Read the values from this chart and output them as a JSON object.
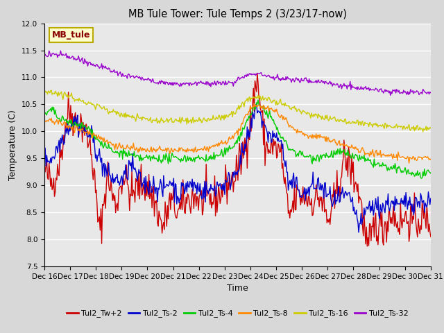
{
  "title": "MB Tule Tower: Tule Temps 2 (3/23/17-now)",
  "xlabel": "Time",
  "ylabel": "Temperature (C)",
  "ylim": [
    7.5,
    12.0
  ],
  "yticks": [
    7.5,
    8.0,
    8.5,
    9.0,
    9.5,
    10.0,
    10.5,
    11.0,
    11.5,
    12.0
  ],
  "xtick_labels": [
    "Dec 16",
    "Dec 17",
    "Dec 18",
    "Dec 19",
    "Dec 20",
    "Dec 21",
    "Dec 22",
    "Dec 23",
    "Dec 24",
    "Dec 25",
    "Dec 26",
    "Dec 27",
    "Dec 28",
    "Dec 29",
    "Dec 30",
    "Dec 31"
  ],
  "watermark_text": "MB_tule",
  "watermark_bg": "#ffffcc",
  "watermark_border": "#bbaa00",
  "watermark_text_color": "#880000",
  "series_colors": [
    "#cc0000",
    "#0000cc",
    "#00cc00",
    "#ff8800",
    "#cccc00",
    "#9900cc"
  ],
  "series_labels": [
    "Tul2_Tw+2",
    "Tul2_Ts-2",
    "Tul2_Ts-4",
    "Tul2_Ts-8",
    "Tul2_Ts-16",
    "Tul2_Ts-32"
  ],
  "plot_bg_color": "#e8e8e8",
  "grid_color": "#ffffff",
  "linewidth": 1.0,
  "n_points": 500
}
